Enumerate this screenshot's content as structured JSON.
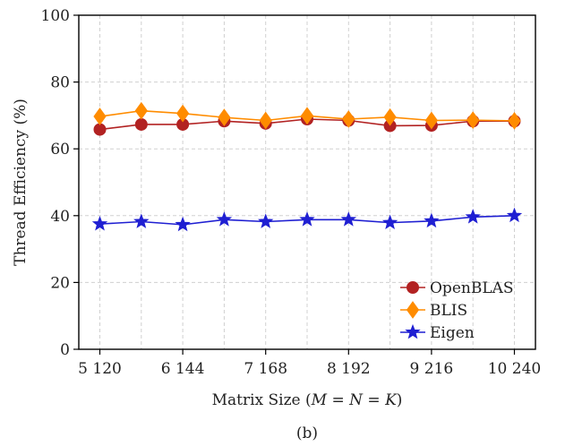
{
  "chart_data": {
    "type": "line",
    "xlabel": "Matrix Size (M = N = K)",
    "ylabel": "Thread Efficiency (%)",
    "caption": "(b)",
    "x": [
      5120,
      5632,
      6144,
      6656,
      7168,
      7680,
      8192,
      8704,
      9216,
      9728,
      10240
    ],
    "x_ticks": [
      5120,
      6144,
      7168,
      8192,
      9216,
      10240
    ],
    "x_tick_labels": [
      "5 120",
      "6 144",
      "7 168",
      "8 192",
      "9 216",
      "10 240"
    ],
    "xlim": [
      4860,
      10500
    ],
    "ylim": [
      0,
      100
    ],
    "y_ticks": [
      0,
      20,
      40,
      60,
      80,
      100
    ],
    "y_tick_labels": [
      "0",
      "20",
      "40",
      "60",
      "80",
      "100"
    ],
    "grid": true,
    "legend_position": "bottom-right",
    "series": [
      {
        "name": "OpenBLAS",
        "color": "#b22222",
        "marker": "circle",
        "values": [
          65.8,
          67.3,
          67.3,
          68.3,
          67.6,
          68.9,
          68.5,
          66.9,
          67.0,
          68.3,
          68.3
        ]
      },
      {
        "name": "BLIS",
        "color": "#ff8c00",
        "marker": "diamond",
        "values": [
          69.7,
          71.4,
          70.6,
          69.4,
          68.5,
          69.9,
          68.9,
          69.5,
          68.5,
          68.6,
          68.4
        ]
      },
      {
        "name": "Eigen",
        "color": "#1f1fd2",
        "marker": "star",
        "values": [
          37.5,
          38.2,
          37.3,
          38.8,
          38.2,
          38.8,
          38.8,
          37.9,
          38.4,
          39.6,
          40.0
        ]
      }
    ]
  }
}
